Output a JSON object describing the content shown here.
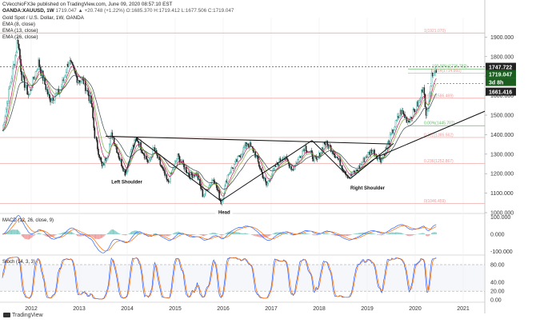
{
  "header": {
    "line1": "CVecchioFX3e published on TradingView.com, June 09, 2020 08:57:10 EST",
    "line2_symbol": "OANDA:XAUUSD, 1W",
    "line2_values": "1719.047 ▲ +20.748 (+1.22%) O:1685.370 H:1719.412 L:1677.506 C:1719.047",
    "line3": "Gold Spot / U.S. Dollar, 1W, OANDA",
    "line4": "EMA (8, close)",
    "line5": "EMA (13, close)",
    "line6": "EMA (26, close)"
  },
  "branding": {
    "tradingview": "TradingView"
  },
  "colors": {
    "up": "#26a69a",
    "down": "#222222",
    "ema8": "#c2185b",
    "ema13": "#7cb342",
    "ema26": "#37474f",
    "fib": "#ef9a9a",
    "macd": "#2962ff",
    "signal": "#ff6d00",
    "stoch_k": "#2962ff",
    "stoch_d": "#ff6d00",
    "price_tag": "#222222",
    "current_tag": "#1b5e20"
  },
  "chart_data": [
    {
      "type": "candlestick",
      "panel": "price",
      "ylim": [
        1000,
        2000
      ],
      "x_ticks": [
        "2012",
        "2013",
        "2014",
        "2015",
        "2016",
        "2017",
        "2018",
        "2019",
        "2020",
        "2021"
      ],
      "y_ticks": [
        "1900.000",
        "1800.000",
        "1700.000",
        "1600.000",
        "1500.000",
        "1400.000",
        "1300.000",
        "1200.000",
        "1100.000",
        "1000.000"
      ],
      "price_tags": [
        "1747.722",
        "1719.047",
        "3d 8h",
        "1661.416"
      ],
      "fib_levels": [
        {
          "label": "1(1921.070)",
          "value": 1921.07
        },
        {
          "label": "100.00%(1736.782)",
          "value": 1736.78
        },
        {
          "label": "0.764(1714.860)",
          "value": 1714.86
        },
        {
          "label": "0.618(1586.469)",
          "value": 1586.47
        },
        {
          "label": "0.00%(1445.707)",
          "value": 1445.71
        },
        {
          "label": "0.382(1385.562)",
          "value": 1385.56
        },
        {
          "label": "0.236(1252.867)",
          "value": 1252.87
        },
        {
          "label": "0(1046.459)",
          "value": 1046.46
        }
      ],
      "annotations": [
        "Left Shoulder",
        "Head",
        "Right Shoulder"
      ],
      "weekly_close_anchors": [
        [
          2011.4,
          1420
        ],
        [
          2011.55,
          1640
        ],
        [
          2011.68,
          1820
        ],
        [
          2011.72,
          1900
        ],
        [
          2011.8,
          1700
        ],
        [
          2011.95,
          1600
        ],
        [
          2012.15,
          1770
        ],
        [
          2012.38,
          1580
        ],
        [
          2012.6,
          1620
        ],
        [
          2012.78,
          1780
        ],
        [
          2012.95,
          1690
        ],
        [
          2013.1,
          1670
        ],
        [
          2013.25,
          1560
        ],
        [
          2013.32,
          1400
        ],
        [
          2013.48,
          1230
        ],
        [
          2013.6,
          1310
        ],
        [
          2013.68,
          1410
        ],
        [
          2013.85,
          1270
        ],
        [
          2013.97,
          1200
        ],
        [
          2014.1,
          1330
        ],
        [
          2014.2,
          1380
        ],
        [
          2014.45,
          1250
        ],
        [
          2014.55,
          1330
        ],
        [
          2014.85,
          1150
        ],
        [
          2015.05,
          1290
        ],
        [
          2015.3,
          1190
        ],
        [
          2015.45,
          1200
        ],
        [
          2015.58,
          1085
        ],
        [
          2015.8,
          1180
        ],
        [
          2015.96,
          1050
        ],
        [
          2016.1,
          1200
        ],
        [
          2016.25,
          1250
        ],
        [
          2016.5,
          1360
        ],
        [
          2016.65,
          1310
        ],
        [
          2016.9,
          1140
        ],
        [
          2017.1,
          1240
        ],
        [
          2017.25,
          1290
        ],
        [
          2017.45,
          1220
        ],
        [
          2017.7,
          1340
        ],
        [
          2017.95,
          1260
        ],
        [
          2018.1,
          1360
        ],
        [
          2018.25,
          1330
        ],
        [
          2018.45,
          1250
        ],
        [
          2018.62,
          1180
        ],
        [
          2018.8,
          1220
        ],
        [
          2018.98,
          1290
        ],
        [
          2019.1,
          1320
        ],
        [
          2019.3,
          1270
        ],
        [
          2019.55,
          1430
        ],
        [
          2019.7,
          1520
        ],
        [
          2019.85,
          1470
        ],
        [
          2019.98,
          1520
        ],
        [
          2020.1,
          1580
        ],
        [
          2020.18,
          1670
        ],
        [
          2020.22,
          1470
        ],
        [
          2020.3,
          1620
        ],
        [
          2020.37,
          1740
        ],
        [
          2020.44,
          1719
        ]
      ]
    },
    {
      "type": "line",
      "panel": "macd",
      "title": "MACD (12, 26, close, 9)",
      "y_ticks": [
        "100.000",
        "0.000",
        "-100.000"
      ],
      "ylim": [
        -115,
        115
      ]
    },
    {
      "type": "line",
      "panel": "stochastic",
      "title": "Stoch (14, 3, 3)",
      "y_ticks": [
        "80.00",
        "40.00",
        "20.00",
        "0.00"
      ],
      "ylim": [
        -5,
        100
      ],
      "bands": [
        80,
        20
      ]
    }
  ]
}
